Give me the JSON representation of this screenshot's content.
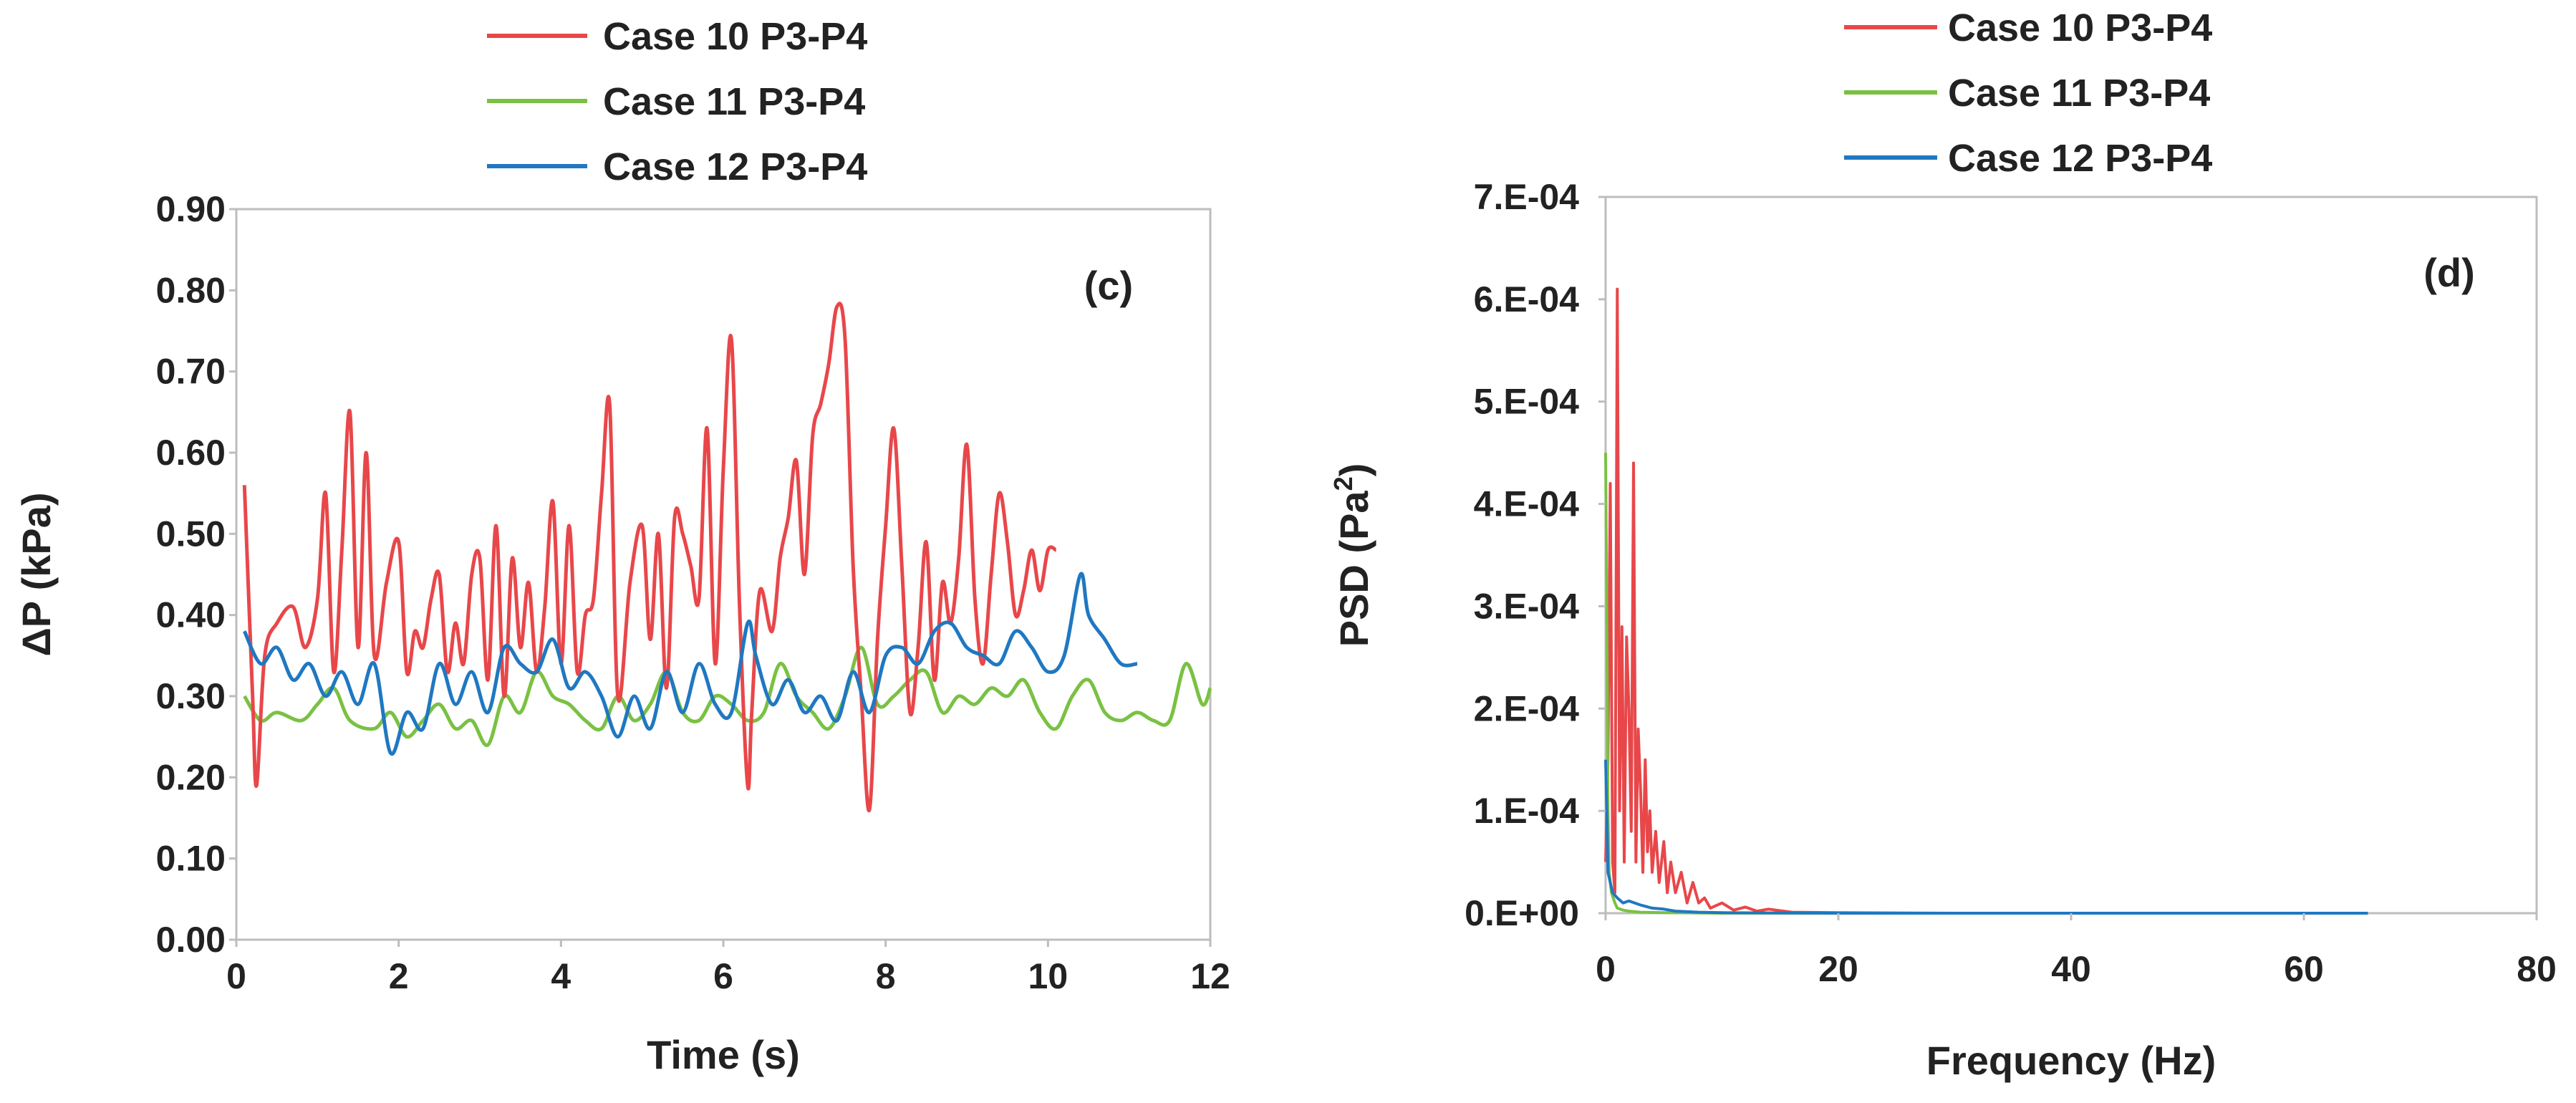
{
  "chart_data": [
    {
      "type": "line",
      "panel_label": "(c)",
      "xlabel": "Time (s)",
      "ylabel": "ΔP (kPa)",
      "xlim": [
        0,
        12
      ],
      "ylim": [
        0,
        0.9
      ],
      "xticks": [
        "0",
        "2",
        "4",
        "6",
        "8",
        "10",
        "12"
      ],
      "yticks": [
        "0.00",
        "0.10",
        "0.20",
        "0.30",
        "0.40",
        "0.50",
        "0.60",
        "0.70",
        "0.80",
        "0.90"
      ],
      "grid": false,
      "legend_position": "top-center",
      "series": [
        {
          "name": "Case 10 P3-P4",
          "color": "#e8474a",
          "x": [
            0.1,
            0.2,
            0.25,
            0.35,
            0.5,
            0.7,
            0.85,
            1.0,
            1.1,
            1.2,
            1.3,
            1.4,
            1.5,
            1.6,
            1.7,
            1.85,
            2.0,
            2.1,
            2.2,
            2.3,
            2.4,
            2.5,
            2.6,
            2.7,
            2.8,
            2.9,
            3.0,
            3.1,
            3.2,
            3.3,
            3.4,
            3.5,
            3.6,
            3.7,
            3.8,
            3.9,
            4.0,
            4.1,
            4.2,
            4.3,
            4.4,
            4.5,
            4.6,
            4.7,
            4.85,
            5.0,
            5.1,
            5.2,
            5.3,
            5.4,
            5.5,
            5.6,
            5.7,
            5.8,
            5.9,
            6.0,
            6.1,
            6.2,
            6.3,
            6.35,
            6.45,
            6.6,
            6.7,
            6.8,
            6.9,
            7.0,
            7.1,
            7.2,
            7.3,
            7.4,
            7.5,
            7.6,
            7.7,
            7.8,
            7.9,
            8.0,
            8.1,
            8.2,
            8.3,
            8.4,
            8.5,
            8.6,
            8.7,
            8.8,
            8.9,
            9.0,
            9.1,
            9.2,
            9.3,
            9.4,
            9.5,
            9.6,
            9.7,
            9.8,
            9.9,
            10.0,
            10.1
          ],
          "y": [
            0.56,
            0.3,
            0.19,
            0.35,
            0.39,
            0.41,
            0.36,
            0.42,
            0.55,
            0.33,
            0.48,
            0.65,
            0.36,
            0.6,
            0.35,
            0.44,
            0.49,
            0.33,
            0.38,
            0.36,
            0.42,
            0.45,
            0.33,
            0.39,
            0.34,
            0.45,
            0.47,
            0.32,
            0.51,
            0.3,
            0.47,
            0.36,
            0.44,
            0.33,
            0.41,
            0.54,
            0.34,
            0.51,
            0.33,
            0.4,
            0.42,
            0.55,
            0.66,
            0.3,
            0.44,
            0.51,
            0.37,
            0.5,
            0.31,
            0.52,
            0.5,
            0.46,
            0.42,
            0.63,
            0.34,
            0.58,
            0.74,
            0.41,
            0.19,
            0.28,
            0.43,
            0.38,
            0.47,
            0.52,
            0.59,
            0.45,
            0.62,
            0.66,
            0.71,
            0.78,
            0.74,
            0.46,
            0.3,
            0.16,
            0.37,
            0.51,
            0.63,
            0.46,
            0.28,
            0.36,
            0.49,
            0.32,
            0.44,
            0.39,
            0.47,
            0.61,
            0.42,
            0.34,
            0.45,
            0.55,
            0.49,
            0.4,
            0.43,
            0.48,
            0.43,
            0.48,
            0.48
          ]
        },
        {
          "name": "Case 11 P3-P4",
          "color": "#7ac143",
          "x": [
            0.1,
            0.3,
            0.5,
            0.8,
            1.0,
            1.2,
            1.4,
            1.7,
            1.9,
            2.1,
            2.3,
            2.5,
            2.7,
            2.9,
            3.1,
            3.3,
            3.5,
            3.7,
            3.9,
            4.1,
            4.3,
            4.5,
            4.7,
            4.9,
            5.1,
            5.3,
            5.5,
            5.7,
            5.9,
            6.1,
            6.3,
            6.5,
            6.7,
            6.9,
            7.1,
            7.3,
            7.5,
            7.7,
            7.9,
            8.1,
            8.3,
            8.5,
            8.7,
            8.9,
            9.1,
            9.3,
            9.5,
            9.7,
            9.9,
            10.1,
            10.3,
            10.5,
            10.7,
            10.9,
            11.1,
            11.3,
            11.5,
            11.7,
            11.9,
            12.0
          ],
          "y": [
            0.3,
            0.27,
            0.28,
            0.27,
            0.29,
            0.31,
            0.27,
            0.26,
            0.28,
            0.25,
            0.27,
            0.29,
            0.26,
            0.27,
            0.24,
            0.3,
            0.28,
            0.33,
            0.3,
            0.29,
            0.27,
            0.26,
            0.3,
            0.27,
            0.29,
            0.33,
            0.28,
            0.27,
            0.3,
            0.29,
            0.27,
            0.28,
            0.34,
            0.3,
            0.28,
            0.26,
            0.3,
            0.36,
            0.29,
            0.3,
            0.32,
            0.33,
            0.28,
            0.3,
            0.29,
            0.31,
            0.3,
            0.32,
            0.28,
            0.26,
            0.3,
            0.32,
            0.28,
            0.27,
            0.28,
            0.27,
            0.27,
            0.34,
            0.29,
            0.31
          ]
        },
        {
          "name": "Case 12 P3-P4",
          "color": "#1f78c1",
          "x": [
            0.1,
            0.3,
            0.5,
            0.7,
            0.9,
            1.1,
            1.3,
            1.5,
            1.7,
            1.9,
            2.1,
            2.3,
            2.5,
            2.7,
            2.9,
            3.1,
            3.3,
            3.5,
            3.7,
            3.9,
            4.1,
            4.3,
            4.5,
            4.7,
            4.9,
            5.1,
            5.3,
            5.5,
            5.7,
            5.9,
            6.1,
            6.3,
            6.4,
            6.6,
            6.8,
            7.0,
            7.2,
            7.4,
            7.6,
            7.8,
            8.0,
            8.2,
            8.4,
            8.6,
            8.8,
            9.0,
            9.2,
            9.4,
            9.6,
            9.8,
            10.0,
            10.2,
            10.4,
            10.5,
            10.7,
            10.9,
            11.1
          ],
          "y": [
            0.38,
            0.34,
            0.36,
            0.32,
            0.34,
            0.3,
            0.33,
            0.29,
            0.34,
            0.23,
            0.28,
            0.26,
            0.34,
            0.29,
            0.33,
            0.28,
            0.36,
            0.34,
            0.33,
            0.37,
            0.31,
            0.33,
            0.3,
            0.25,
            0.3,
            0.26,
            0.33,
            0.28,
            0.34,
            0.29,
            0.28,
            0.39,
            0.35,
            0.29,
            0.32,
            0.28,
            0.3,
            0.27,
            0.33,
            0.28,
            0.35,
            0.36,
            0.34,
            0.38,
            0.39,
            0.36,
            0.35,
            0.34,
            0.38,
            0.36,
            0.33,
            0.35,
            0.45,
            0.4,
            0.37,
            0.34,
            0.34
          ]
        }
      ]
    },
    {
      "type": "line",
      "panel_label": "(d)",
      "xlabel": "Frequency (Hz)",
      "ylabel_main": "PSD (Pa",
      "ylabel_sup": "2",
      "ylabel_end": ")",
      "xlim": [
        0,
        80
      ],
      "ylim": [
        0,
        0.0007
      ],
      "xticks": [
        "0",
        "20",
        "40",
        "60",
        "80"
      ],
      "yticks": [
        "0.E+00",
        "1.E-04",
        "2.E-04",
        "3.E-04",
        "4.E-04",
        "5.E-04",
        "6.E-04",
        "7.E-04"
      ],
      "grid": false,
      "legend_position": "top-center",
      "series": [
        {
          "name": "Case 10 P3-P4",
          "color": "#e8474a",
          "x": [
            0.0,
            0.2,
            0.4,
            0.6,
            0.8,
            1.0,
            1.2,
            1.4,
            1.6,
            1.8,
            2.0,
            2.2,
            2.4,
            2.6,
            2.8,
            3.0,
            3.2,
            3.4,
            3.6,
            3.8,
            4.0,
            4.3,
            4.6,
            5.0,
            5.3,
            5.6,
            6.0,
            6.5,
            7.0,
            7.5,
            8.0,
            8.5,
            9.0,
            10.0,
            11.0,
            12.0,
            13.0,
            14.0,
            16.0,
            20.0,
            30.0,
            40.0,
            50.0,
            60.0,
            65.5
          ],
          "y": [
            5e-05,
            0.00015,
            0.00042,
            5e-05,
            2e-05,
            0.00061,
            0.0001,
            0.00028,
            5e-05,
            0.00027,
            0.0002,
            8e-05,
            0.00044,
            5e-05,
            0.00018,
            0.00012,
            4e-05,
            0.00015,
            6e-05,
            0.0001,
            4e-05,
            8e-05,
            3e-05,
            7e-05,
            2e-05,
            5e-05,
            2e-05,
            4e-05,
            1e-05,
            3e-05,
            1e-05,
            1.5e-05,
            5e-06,
            1e-05,
            3e-06,
            6e-06,
            2e-06,
            4e-06,
            1e-06,
            5e-07,
            0.0,
            0.0,
            0.0,
            0.0,
            0.0
          ]
        },
        {
          "name": "Case 11 P3-P4",
          "color": "#7ac143",
          "x": [
            0.0,
            0.1,
            0.2,
            0.3,
            0.5,
            0.8,
            1.0,
            1.5,
            2.0,
            3.0,
            5.0,
            10.0,
            20.0,
            40.0,
            65.5
          ],
          "y": [
            0.00045,
            0.0003,
            0.0001,
            4e-05,
            2e-05,
            1e-05,
            5e-06,
            3e-06,
            2e-06,
            1e-06,
            5e-07,
            0.0,
            0.0,
            0.0,
            0.0
          ]
        },
        {
          "name": "Case 12 P3-P4",
          "color": "#1f78c1",
          "x": [
            0.0,
            0.1,
            0.2,
            0.4,
            0.6,
            1.0,
            1.5,
            2.0,
            3.0,
            4.0,
            5.0,
            6.0,
            8.0,
            10.0,
            20.0,
            40.0,
            65.5
          ],
          "y": [
            0.00015,
            0.0001,
            4e-05,
            3e-05,
            2e-05,
            1.5e-05,
            1e-05,
            1.2e-05,
            8e-06,
            5e-06,
            4e-06,
            2e-06,
            1e-06,
            5e-07,
            0.0,
            0.0,
            0.0
          ]
        }
      ]
    }
  ]
}
